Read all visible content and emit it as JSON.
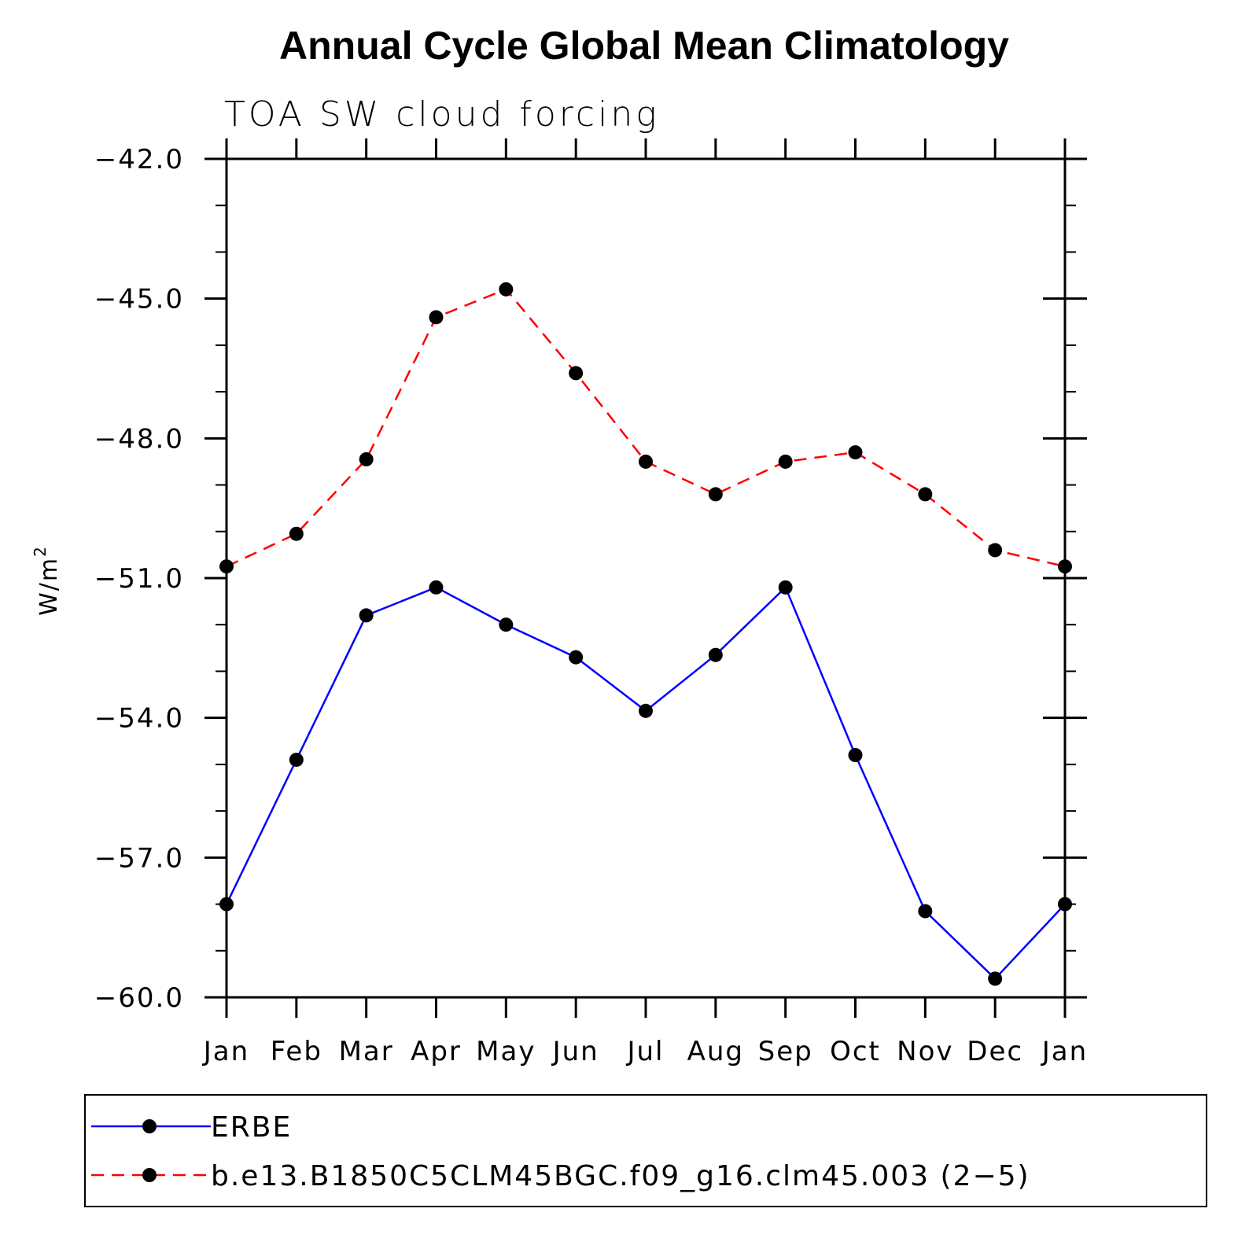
{
  "chart_data": {
    "type": "line",
    "title": "Annual Cycle Global Mean Climatology",
    "subtitle": "TOA SW cloud forcing",
    "xlabel": "",
    "ylabel": "W/m",
    "ylabel_superscript": "2",
    "categories": [
      "Jan",
      "Feb",
      "Mar",
      "Apr",
      "May",
      "Jun",
      "Jul",
      "Aug",
      "Sep",
      "Oct",
      "Nov",
      "Dec",
      "Jan"
    ],
    "ylim": [
      -60.0,
      -42.0
    ],
    "yticks": [
      -42.0,
      -45.0,
      -48.0,
      -51.0,
      -54.0,
      -57.0,
      -60.0
    ],
    "ytick_labels": [
      "−42.0",
      "−45.0",
      "−48.0",
      "−51.0",
      "−54.0",
      "−57.0",
      "−60.0"
    ],
    "series": [
      {
        "name": "ERBE",
        "color": "#0000ff",
        "dash": "solid",
        "values": [
          -58.0,
          -54.9,
          -51.8,
          -51.2,
          -52.0,
          -52.7,
          -53.85,
          -52.65,
          -51.2,
          -54.8,
          -58.15,
          -59.6,
          -58.0
        ]
      },
      {
        "name": "b.e13.B1850C5CLM45BGC.f09_g16.clm45.003 (2−5)",
        "color": "#ff0000",
        "dash": "dashed",
        "values": [
          -50.75,
          -50.05,
          -48.45,
          -45.4,
          -44.8,
          -46.6,
          -48.5,
          -49.2,
          -48.5,
          -48.3,
          -49.2,
          -50.4,
          -50.75
        ]
      }
    ],
    "legend_position": "bottom",
    "grid": false
  }
}
